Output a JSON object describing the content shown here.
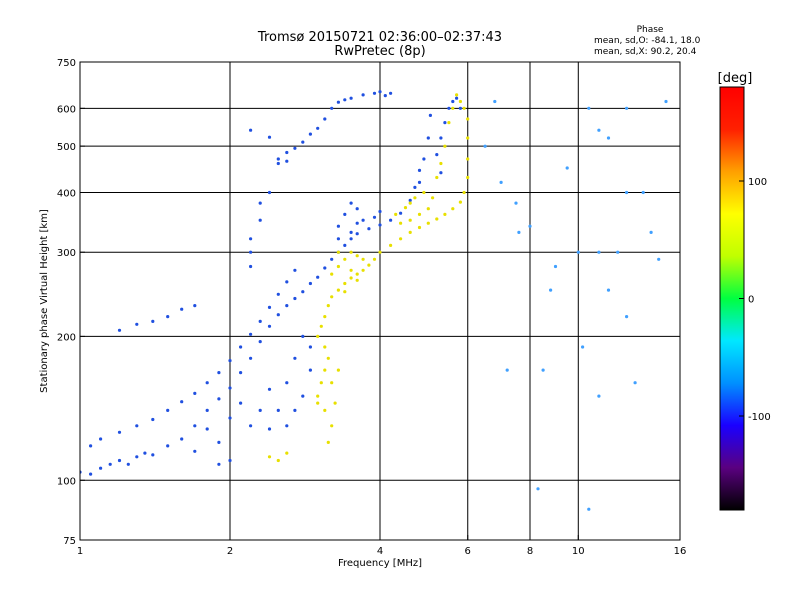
{
  "chart_data": {
    "type": "scatter",
    "title_line1": "Tromsø 20150721 02:36:00–02:37:43",
    "title_line2": "RwPretec (8p)",
    "xlabel": "Frequency [MHz]",
    "ylabel": "Stationary phase Virtual Height [km]",
    "x_scale": "log2",
    "y_scale": "log",
    "xlim": [
      1,
      16
    ],
    "ylim": [
      75,
      750
    ],
    "x_ticks": [
      1,
      2,
      4,
      6,
      8,
      10,
      16
    ],
    "x_tick_labels": [
      "1",
      "2",
      "4",
      "6",
      "8",
      "10",
      "16"
    ],
    "y_ticks": [
      75,
      100,
      200,
      300,
      400,
      500,
      600,
      750
    ],
    "y_tick_labels": [
      "75",
      "100",
      "200",
      "300",
      "400",
      "500",
      "600",
      "750"
    ],
    "grid_x": [
      2,
      4,
      6,
      8,
      10
    ],
    "grid_y": [
      100,
      200,
      300,
      400,
      500,
      600
    ],
    "phase_box": {
      "heading": "Phase",
      "o_line": "mean, sd,O: -84.1, 18.0",
      "x_line": "mean, sd,X:  90.2, 20.4"
    },
    "colorbar": {
      "label": "[deg]",
      "range": [
        -180,
        180
      ],
      "tick_values": [
        100,
        0,
        -100
      ],
      "tick_labels": [
        "100",
        "0",
        "-100"
      ],
      "colormap": [
        "#000000",
        "#5a0080",
        "#1a00ff",
        "#0090ff",
        "#00e8ff",
        "#00ff40",
        "#c0ff00",
        "#ffff00",
        "#ffa000",
        "#ff2000",
        "#ff0000"
      ]
    },
    "series": [
      {
        "name": "O-mode",
        "mean_phase": -84.1,
        "color": "#2050e0",
        "points": [
          [
            1.0,
            104
          ],
          [
            1.05,
            103
          ],
          [
            1.1,
            106
          ],
          [
            1.15,
            108
          ],
          [
            1.2,
            110
          ],
          [
            1.25,
            108
          ],
          [
            1.3,
            112
          ],
          [
            1.35,
            114
          ],
          [
            1.4,
            113
          ],
          [
            1.5,
            118
          ],
          [
            1.6,
            122
          ],
          [
            1.7,
            130
          ],
          [
            1.8,
            140
          ],
          [
            1.9,
            148
          ],
          [
            2.0,
            156
          ],
          [
            2.1,
            168
          ],
          [
            2.2,
            180
          ],
          [
            2.3,
            195
          ],
          [
            2.4,
            210
          ],
          [
            2.5,
            222
          ],
          [
            2.6,
            232
          ],
          [
            2.7,
            240
          ],
          [
            2.8,
            248
          ],
          [
            2.9,
            258
          ],
          [
            3.0,
            266
          ],
          [
            3.1,
            278
          ],
          [
            3.2,
            290
          ],
          [
            3.3,
            300
          ],
          [
            3.4,
            310
          ],
          [
            3.5,
            320
          ],
          [
            3.6,
            328
          ],
          [
            3.8,
            336
          ],
          [
            4.0,
            342
          ],
          [
            4.2,
            350
          ],
          [
            4.4,
            362
          ],
          [
            4.6,
            385
          ],
          [
            4.8,
            420
          ],
          [
            4.9,
            470
          ],
          [
            5.0,
            520
          ],
          [
            5.05,
            580
          ],
          [
            1.05,
            118
          ],
          [
            1.1,
            122
          ],
          [
            1.2,
            126
          ],
          [
            1.3,
            130
          ],
          [
            1.4,
            134
          ],
          [
            1.5,
            140
          ],
          [
            1.6,
            146
          ],
          [
            1.7,
            152
          ],
          [
            1.8,
            160
          ],
          [
            1.9,
            168
          ],
          [
            2.0,
            178
          ],
          [
            2.1,
            190
          ],
          [
            2.2,
            202
          ],
          [
            2.3,
            215
          ],
          [
            2.4,
            230
          ],
          [
            2.5,
            245
          ],
          [
            2.6,
            260
          ],
          [
            2.7,
            275
          ],
          [
            1.3,
            212
          ],
          [
            1.4,
            215
          ],
          [
            1.5,
            220
          ],
          [
            1.6,
            228
          ],
          [
            1.7,
            232
          ],
          [
            1.2,
            206
          ],
          [
            2.2,
            300
          ],
          [
            2.2,
            320
          ],
          [
            2.3,
            350
          ],
          [
            2.3,
            380
          ],
          [
            2.4,
            400
          ],
          [
            2.2,
            280
          ],
          [
            2.5,
            470
          ],
          [
            2.6,
            485
          ],
          [
            2.7,
            495
          ],
          [
            2.8,
            510
          ],
          [
            2.6,
            465
          ],
          [
            2.5,
            460
          ],
          [
            2.2,
            540
          ],
          [
            2.4,
            522
          ],
          [
            2.9,
            530
          ],
          [
            3.0,
            545
          ],
          [
            3.1,
            570
          ],
          [
            3.2,
            600
          ],
          [
            3.3,
            618
          ],
          [
            3.5,
            630
          ],
          [
            3.7,
            640
          ],
          [
            3.9,
            645
          ],
          [
            4.1,
            638
          ],
          [
            3.4,
            625
          ],
          [
            4.0,
            650
          ],
          [
            4.2,
            645
          ],
          [
            3.3,
            340
          ],
          [
            3.4,
            360
          ],
          [
            3.5,
            380
          ],
          [
            3.6,
            370
          ],
          [
            3.7,
            350
          ],
          [
            3.5,
            330
          ],
          [
            3.3,
            320
          ],
          [
            3.9,
            355
          ],
          [
            4.0,
            365
          ],
          [
            3.6,
            345
          ],
          [
            2.8,
            200
          ],
          [
            2.9,
            190
          ],
          [
            2.7,
            180
          ],
          [
            2.6,
            160
          ],
          [
            2.5,
            140
          ],
          [
            2.6,
            130
          ],
          [
            2.4,
            128
          ],
          [
            2.7,
            140
          ],
          [
            2.8,
            150
          ],
          [
            2.9,
            170
          ],
          [
            2.2,
            130
          ],
          [
            2.3,
            140
          ],
          [
            2.4,
            155
          ],
          [
            2.1,
            145
          ],
          [
            2.0,
            135
          ],
          [
            1.9,
            120
          ],
          [
            1.8,
            128
          ],
          [
            1.7,
            115
          ],
          [
            1.9,
            108
          ],
          [
            2.0,
            110
          ],
          [
            5.3,
            520
          ],
          [
            5.4,
            560
          ],
          [
            5.5,
            600
          ],
          [
            5.2,
            480
          ],
          [
            5.3,
            440
          ],
          [
            5.6,
            620
          ],
          [
            5.7,
            630
          ],
          [
            5.8,
            600
          ],
          [
            4.7,
            410
          ],
          [
            4.8,
            445
          ]
        ]
      },
      {
        "name": "X-mode",
        "mean_phase": 90.2,
        "color": "#e8e000",
        "points": [
          [
            3.0,
            150
          ],
          [
            3.05,
            160
          ],
          [
            3.1,
            170
          ],
          [
            3.15,
            180
          ],
          [
            3.1,
            190
          ],
          [
            3.0,
            200
          ],
          [
            3.05,
            210
          ],
          [
            3.1,
            220
          ],
          [
            3.15,
            232
          ],
          [
            3.2,
            242
          ],
          [
            3.3,
            250
          ],
          [
            3.4,
            258
          ],
          [
            3.5,
            265
          ],
          [
            3.6,
            270
          ],
          [
            3.7,
            275
          ],
          [
            3.8,
            282
          ],
          [
            3.9,
            290
          ],
          [
            4.0,
            300
          ],
          [
            4.2,
            310
          ],
          [
            4.4,
            320
          ],
          [
            4.6,
            330
          ],
          [
            4.8,
            338
          ],
          [
            5.0,
            345
          ],
          [
            5.2,
            352
          ],
          [
            5.4,
            360
          ],
          [
            5.6,
            370
          ],
          [
            5.8,
            382
          ],
          [
            5.9,
            400
          ],
          [
            6.0,
            430
          ],
          [
            6.0,
            470
          ],
          [
            6.0,
            520
          ],
          [
            6.0,
            570
          ],
          [
            5.9,
            600
          ],
          [
            5.8,
            620
          ],
          [
            5.7,
            640
          ],
          [
            5.6,
            600
          ],
          [
            5.5,
            560
          ],
          [
            5.4,
            500
          ],
          [
            5.3,
            460
          ],
          [
            5.2,
            430
          ],
          [
            4.6,
            350
          ],
          [
            4.4,
            345
          ],
          [
            4.8,
            360
          ],
          [
            5.0,
            370
          ],
          [
            5.1,
            390
          ],
          [
            4.9,
            400
          ],
          [
            4.7,
            390
          ],
          [
            4.5,
            372
          ],
          [
            4.3,
            360
          ],
          [
            4.6,
            380
          ],
          [
            3.2,
            160
          ],
          [
            3.3,
            170
          ],
          [
            3.25,
            145
          ],
          [
            3.1,
            140
          ],
          [
            3.0,
            145
          ],
          [
            3.2,
            130
          ],
          [
            3.15,
            120
          ],
          [
            2.4,
            112
          ],
          [
            2.5,
            110
          ],
          [
            2.6,
            114
          ],
          [
            3.3,
            280
          ],
          [
            3.4,
            290
          ],
          [
            3.5,
            300
          ],
          [
            3.6,
            295
          ],
          [
            3.7,
            290
          ],
          [
            3.2,
            270
          ],
          [
            3.3,
            300
          ],
          [
            3.5,
            275
          ],
          [
            3.6,
            262
          ],
          [
            3.4,
            248
          ]
        ]
      },
      {
        "name": "Scattered",
        "mean_phase": null,
        "color": "#40a0ff",
        "points": [
          [
            6.5,
            500
          ],
          [
            7.0,
            420
          ],
          [
            7.5,
            380
          ],
          [
            8.0,
            340
          ],
          [
            9.0,
            280
          ],
          [
            10.0,
            300
          ],
          [
            10.5,
            600
          ],
          [
            11.0,
            540
          ],
          [
            11.0,
            300
          ],
          [
            11.5,
            250
          ],
          [
            12.0,
            300
          ],
          [
            12.5,
            600
          ],
          [
            13.0,
            160
          ],
          [
            8.5,
            170
          ],
          [
            8.3,
            96
          ],
          [
            10.5,
            87
          ],
          [
            14.0,
            330
          ],
          [
            15.0,
            620
          ],
          [
            9.5,
            450
          ],
          [
            6.8,
            620
          ],
          [
            7.6,
            330
          ],
          [
            8.8,
            250
          ],
          [
            12.5,
            400
          ],
          [
            12.5,
            220
          ],
          [
            11.0,
            150
          ],
          [
            11.5,
            520
          ],
          [
            10.2,
            190
          ],
          [
            7.2,
            170
          ],
          [
            13.5,
            400
          ],
          [
            14.5,
            290
          ]
        ]
      }
    ]
  }
}
